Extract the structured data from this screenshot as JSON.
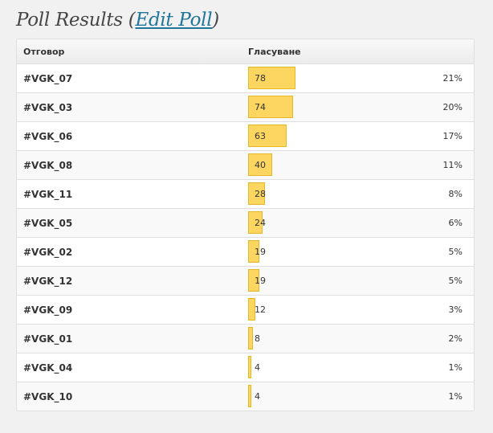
{
  "heading": {
    "prefix": "Poll Results (",
    "edit_link": "Edit Poll",
    "suffix": ")"
  },
  "table": {
    "col_answer": "Отговор",
    "col_votes": "Гласуване",
    "max_votes": 78,
    "rows": [
      {
        "answer": "#VGK_07",
        "votes": "78",
        "percent": "21%"
      },
      {
        "answer": "#VGK_03",
        "votes": "74",
        "percent": "20%"
      },
      {
        "answer": "#VGK_06",
        "votes": "63",
        "percent": "17%"
      },
      {
        "answer": "#VGK_08",
        "votes": "40",
        "percent": "11%"
      },
      {
        "answer": "#VGK_11",
        "votes": "28",
        "percent": "8%"
      },
      {
        "answer": "#VGK_05",
        "votes": "24",
        "percent": "6%"
      },
      {
        "answer": "#VGK_02",
        "votes": "19",
        "percent": "5%"
      },
      {
        "answer": "#VGK_12",
        "votes": "19",
        "percent": "5%"
      },
      {
        "answer": "#VGK_09",
        "votes": "12",
        "percent": "3%"
      },
      {
        "answer": "#VGK_01",
        "votes": "8",
        "percent": "2%"
      },
      {
        "answer": "#VGK_04",
        "votes": "4",
        "percent": "1%"
      },
      {
        "answer": "#VGK_10",
        "votes": "4",
        "percent": "1%"
      }
    ]
  },
  "colors": {
    "bar_fill": "#fcd660",
    "link": "#21759b"
  }
}
